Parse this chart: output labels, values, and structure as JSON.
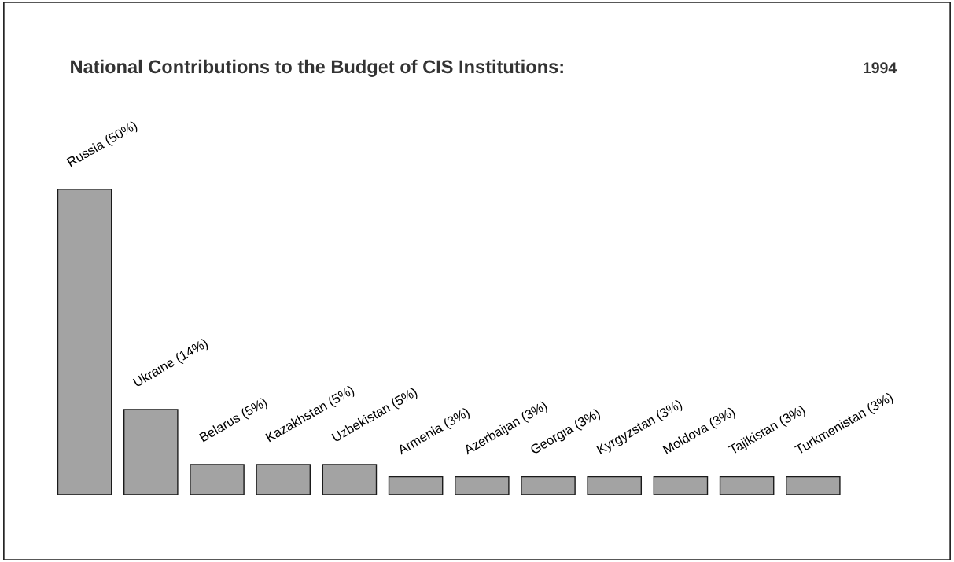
{
  "chart_data": {
    "type": "bar",
    "title": "National Contributions to the Budget of CIS Institutions:",
    "subtitle": "1994",
    "categories": [
      null,
      null,
      null,
      null,
      null,
      null,
      null,
      null,
      null,
      null,
      null,
      null
    ],
    "values": [
      50,
      14,
      5,
      5,
      5,
      3,
      3,
      3,
      3,
      3,
      3,
      3
    ],
    "value_labels": [
      "Russia (50%)",
      "Ukraine (14%)",
      "Belarus (5%)",
      "Kazakhstan (5%)",
      "Uzbekistan (5%)",
      "Armenia (3%)",
      "Azerbaijan (3%)",
      "Georgia (3%)",
      "Kyrgyzstan (3%)",
      "Moldova (3%)",
      "Tajikistan (3%)",
      "Turkmenistan (3%)"
    ],
    "color": "#a3a3a3"
  }
}
